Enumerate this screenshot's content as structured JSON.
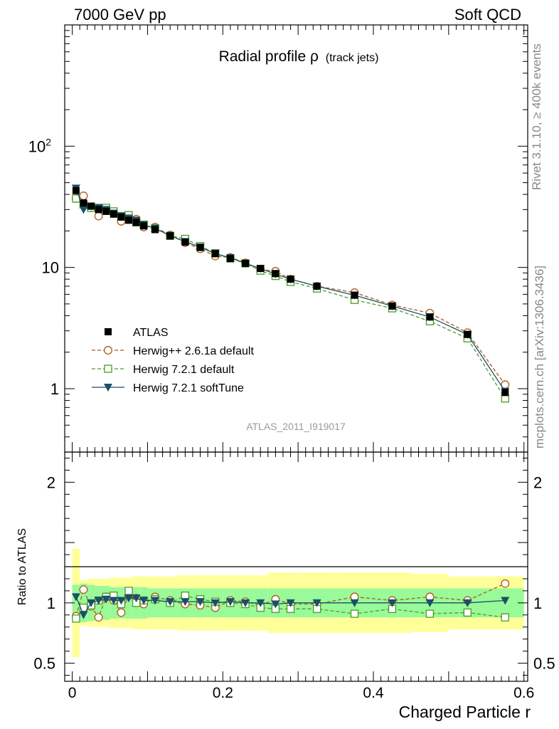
{
  "header": {
    "left": "7000 GeV pp",
    "right": "Soft QCD"
  },
  "side_labels": {
    "rivet": "Rivet 3.1.10, ≥ 400k events",
    "mcplots": "mcplots.cern.ch [arXiv:1306.3436]"
  },
  "chart_data": [
    {
      "type": "line",
      "title_main": "Radial profile ρ",
      "title_sub": "(track jets)",
      "xlabel": "Charged Particle r",
      "ylabel": "",
      "yscale": "log",
      "xlim": [
        -0.01,
        0.605
      ],
      "ylim": [
        0.3,
        1000
      ],
      "y_ticks": [
        {
          "v": 1,
          "label": "1"
        },
        {
          "v": 10,
          "label": "10"
        },
        {
          "v": 100,
          "label": "10",
          "sup": "2"
        }
      ],
      "watermark": "ATLAS_2011_I919017",
      "legend_position": "lower-left",
      "x": [
        0.005,
        0.015,
        0.025,
        0.035,
        0.045,
        0.055,
        0.065,
        0.075,
        0.085,
        0.095,
        0.11,
        0.13,
        0.15,
        0.17,
        0.19,
        0.21,
        0.23,
        0.25,
        0.27,
        0.29,
        0.325,
        0.375,
        0.425,
        0.475,
        0.525,
        0.575
      ],
      "series": [
        {
          "name": "ATLAS",
          "color": "#000000",
          "marker": "filled-square",
          "line": "none",
          "values": [
            43,
            34,
            32,
            30,
            29,
            27.5,
            26,
            24.5,
            23.5,
            22,
            20.5,
            18.2,
            16.2,
            14.6,
            13,
            11.8,
            10.8,
            9.8,
            8.9,
            8.0,
            7.0,
            5.9,
            4.8,
            3.9,
            2.8,
            0.93
          ]
        },
        {
          "name": "Herwig++ 2.6.1a default",
          "color": "#b05a1a",
          "marker": "open-circle",
          "line": "dashed",
          "values": [
            37,
            39,
            31,
            26.5,
            30,
            28,
            24,
            26,
            25,
            21.5,
            21.5,
            18.5,
            16,
            14.2,
            12.4,
            12.1,
            10.9,
            9.6,
            9.3,
            8.0,
            7.0,
            6.2,
            4.9,
            4.2,
            2.9,
            1.08
          ]
        },
        {
          "name": "Herwig 7.2.1 default",
          "color": "#4f9a24",
          "marker": "open-square",
          "line": "dashed",
          "values": [
            37,
            33,
            31,
            31,
            31,
            29,
            26.5,
            27,
            23.5,
            22.5,
            21,
            18.2,
            17.2,
            15,
            13.1,
            11.9,
            10.8,
            9.4,
            8.5,
            7.6,
            6.7,
            5.4,
            4.6,
            3.6,
            2.6,
            0.83
          ]
        },
        {
          "name": "Herwig 7.2.1 softTune",
          "color": "#1a4f6a",
          "marker": "filled-triangle-down",
          "line": "solid",
          "values": [
            45,
            30,
            32,
            31,
            30,
            28,
            26.5,
            25.5,
            24.5,
            22.5,
            21,
            18.3,
            16.3,
            14.7,
            13,
            12,
            10.8,
            9.8,
            8.8,
            8.0,
            7.0,
            5.9,
            4.8,
            3.9,
            2.8,
            0.95
          ]
        }
      ]
    },
    {
      "type": "line",
      "xlabel": "Charged Particle r",
      "ylabel": "Ratio to ATLAS",
      "yscale": "linear",
      "xlim": [
        -0.01,
        0.605
      ],
      "ylim": [
        0.35,
        2.25
      ],
      "x_ticks": [
        {
          "v": 0,
          "label": "0"
        },
        {
          "v": 0.2,
          "label": "0.2"
        },
        {
          "v": 0.4,
          "label": "0.4"
        },
        {
          "v": 0.6,
          "label": "0.6"
        }
      ],
      "y_ticks": [
        {
          "v": 0.5,
          "label": "0.5"
        },
        {
          "v": 1,
          "label": "1"
        },
        {
          "v": 2,
          "label": "2"
        }
      ],
      "band_colors": {
        "inner": "#98fa98",
        "outer": "#ffff99"
      },
      "band_edges": [
        0,
        0.01,
        0.02,
        0.03,
        0.04,
        0.05,
        0.06,
        0.07,
        0.08,
        0.09,
        0.1,
        0.12,
        0.14,
        0.16,
        0.18,
        0.2,
        0.22,
        0.24,
        0.26,
        0.28,
        0.3,
        0.35,
        0.4,
        0.45,
        0.5,
        0.55,
        0.6
      ],
      "band_inner": [
        0.15,
        0.16,
        0.15,
        0.14,
        0.14,
        0.13,
        0.13,
        0.13,
        0.13,
        0.13,
        0.12,
        0.12,
        0.12,
        0.12,
        0.12,
        0.12,
        0.12,
        0.12,
        0.12,
        0.12,
        0.12,
        0.12,
        0.12,
        0.12,
        0.12,
        0.12
      ],
      "band_outer": [
        0.45,
        0.19,
        0.2,
        0.2,
        0.2,
        0.21,
        0.21,
        0.21,
        0.22,
        0.22,
        0.22,
        0.22,
        0.23,
        0.23,
        0.23,
        0.23,
        0.23,
        0.23,
        0.25,
        0.25,
        0.25,
        0.25,
        0.25,
        0.24,
        0.22,
        0.22
      ],
      "series": [
        {
          "name": "Herwig++ 2.6.1a default",
          "color": "#b05a1a",
          "marker": "open-circle",
          "line": "dashed",
          "values": [
            0.89,
            1.11,
            0.97,
            0.88,
            1.05,
            1.02,
            0.92,
            1.06,
            1.04,
            0.99,
            1.05,
            1.02,
            0.99,
            0.98,
            0.96,
            1.02,
            1.01,
            0.98,
            1.03,
            0.99,
            0.99,
            1.05,
            1.02,
            1.05,
            1.02,
            1.16
          ]
        },
        {
          "name": "Herwig 7.2.1 default",
          "color": "#4f9a24",
          "marker": "open-square",
          "line": "dashed",
          "values": [
            0.87,
            0.96,
            0.98,
            1.02,
            1.05,
            1.06,
            0.99,
            1.1,
            1.0,
            1.02,
            1.03,
            1.0,
            1.06,
            1.03,
            1.01,
            1.0,
            0.99,
            0.96,
            0.95,
            0.95,
            0.95,
            0.91,
            0.95,
            0.91,
            0.92,
            0.88
          ]
        },
        {
          "name": "Herwig 7.2.1 softTune",
          "color": "#1a4f6a",
          "marker": "filled-triangle-down",
          "line": "solid",
          "values": [
            1.05,
            0.9,
            1.0,
            1.02,
            1.03,
            1.02,
            1.02,
            1.04,
            1.04,
            1.02,
            1.02,
            1.01,
            1.01,
            1.01,
            1.0,
            1.01,
            1.0,
            1.0,
            0.99,
            1.0,
            1.0,
            1.0,
            1.0,
            1.0,
            1.0,
            1.02
          ]
        }
      ]
    }
  ]
}
